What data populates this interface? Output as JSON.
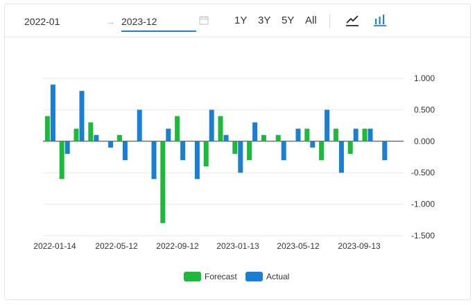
{
  "toolbar": {
    "start_date": "2022-01",
    "end_date": "2023-12",
    "arrow": "→",
    "ranges": [
      "1Y",
      "3Y",
      "5Y",
      "All"
    ],
    "active_view": "bar",
    "icons": [
      "calendar-icon",
      "line-chart-icon",
      "bar-chart-icon"
    ]
  },
  "colors": {
    "forecast": "#1db93a",
    "actual": "#1a7fd2",
    "accent": "#1e7fd8"
  },
  "chart_data": {
    "type": "bar",
    "x_tick_labels": [
      "2022-01-14",
      "2022-05-12",
      "2022-09-12",
      "2023-01-13",
      "2023-05-12",
      "2023-09-13"
    ],
    "y_tick_labels": [
      "1.000",
      "0.500",
      "0.000",
      "-0.500",
      "-1.000",
      "-1.500"
    ],
    "ylim": [
      -1.5,
      1.0
    ],
    "y_axis_position": "right",
    "grid": true,
    "legend_position": "bottom-center",
    "series": [
      {
        "name": "Forecast",
        "values": [
          0.4,
          -0.6,
          0.2,
          0.3,
          null,
          0.1,
          null,
          null,
          -1.3,
          0.4,
          null,
          -0.4,
          0.4,
          -0.2,
          -0.3,
          0.1,
          0.1,
          null,
          0.2,
          -0.3,
          0.2,
          -0.2,
          0.2,
          null,
          null
        ]
      },
      {
        "name": "Actual",
        "values": [
          0.9,
          -0.2,
          0.8,
          0.1,
          -0.1,
          -0.3,
          0.5,
          -0.6,
          0.2,
          -0.3,
          -0.6,
          0.5,
          0.1,
          -0.5,
          0.3,
          null,
          -0.3,
          0.2,
          -0.1,
          0.5,
          -0.5,
          0.2,
          0.2,
          -0.3,
          null
        ]
      }
    ]
  }
}
